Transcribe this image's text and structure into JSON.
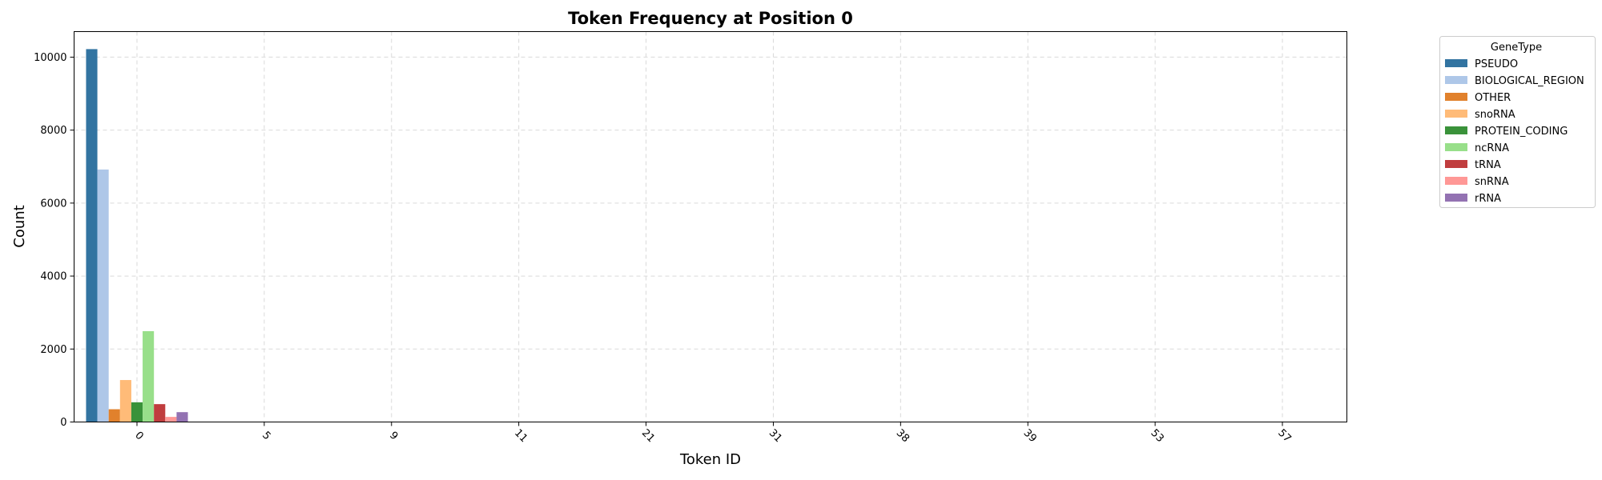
{
  "chart_data": {
    "type": "bar",
    "title": "Token Frequency at Position 0",
    "xlabel": "Token ID",
    "ylabel": "Count",
    "categories": [
      "0",
      "5",
      "9",
      "11",
      "21",
      "31",
      "38",
      "39",
      "53",
      "57"
    ],
    "ylim": [
      0,
      10700
    ],
    "yticks": [
      0,
      2000,
      4000,
      6000,
      8000,
      10000
    ],
    "grid": true,
    "legend_title": "GeneType",
    "legend_position": "outside-top-right",
    "series": [
      {
        "name": "PSEUDO",
        "color": "#3274a1",
        "values": [
          10220,
          0,
          0,
          0,
          0,
          0,
          0,
          0,
          0,
          0
        ]
      },
      {
        "name": "BIOLOGICAL_REGION",
        "color": "#aec7e8",
        "values": [
          6920,
          0,
          0,
          0,
          0,
          0,
          0,
          0,
          0,
          0
        ]
      },
      {
        "name": "OTHER",
        "color": "#e1812c",
        "values": [
          350,
          0,
          0,
          0,
          0,
          0,
          0,
          0,
          0,
          0
        ]
      },
      {
        "name": "snoRNA",
        "color": "#ffbb78",
        "values": [
          1150,
          0,
          0,
          0,
          0,
          0,
          0,
          0,
          0,
          0
        ]
      },
      {
        "name": "PROTEIN_CODING",
        "color": "#3a923a",
        "values": [
          540,
          0,
          0,
          0,
          0,
          0,
          0,
          0,
          0,
          0
        ]
      },
      {
        "name": "ncRNA",
        "color": "#98df8a",
        "values": [
          2490,
          0,
          0,
          0,
          0,
          0,
          0,
          0,
          0,
          0
        ]
      },
      {
        "name": "tRNA",
        "color": "#c03d3e",
        "values": [
          490,
          0,
          0,
          0,
          0,
          0,
          0,
          0,
          0,
          0
        ]
      },
      {
        "name": "snRNA",
        "color": "#ff9896",
        "values": [
          140,
          0,
          0,
          0,
          0,
          0,
          0,
          0,
          0,
          0
        ]
      },
      {
        "name": "rRNA",
        "color": "#9372b2",
        "values": [
          270,
          0,
          0,
          0,
          0,
          0,
          0,
          0,
          0,
          0
        ]
      }
    ]
  }
}
